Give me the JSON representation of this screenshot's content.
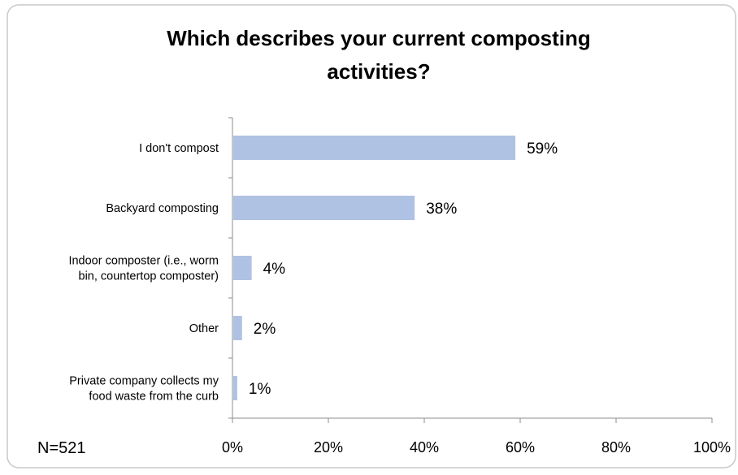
{
  "chart_data": {
    "type": "bar",
    "orientation": "horizontal",
    "title_lines": [
      "Which describes your current composting",
      "activities?"
    ],
    "categories": [
      [
        "I don't compost"
      ],
      [
        "Backyard composting"
      ],
      [
        "Indoor composter (i.e., worm",
        "bin, countertop composter)"
      ],
      [
        "Other"
      ],
      [
        "Private company collects my",
        "food waste from the curb"
      ]
    ],
    "values": [
      59,
      38,
      4,
      2,
      1
    ],
    "data_labels": [
      "59%",
      "38%",
      "4%",
      "2%",
      "1%"
    ],
    "xlim": [
      0,
      100
    ],
    "x_ticks": [
      0,
      20,
      40,
      60,
      80,
      100
    ],
    "x_tick_labels": [
      "0%",
      "20%",
      "40%",
      "60%",
      "80%",
      "100%"
    ],
    "xlabel": "",
    "ylabel": "",
    "grid": false,
    "bar_color": "#b0c2e4",
    "axis_color": "#8c8c8c",
    "frame_color": "#c8c8c8"
  },
  "note": "N=521"
}
